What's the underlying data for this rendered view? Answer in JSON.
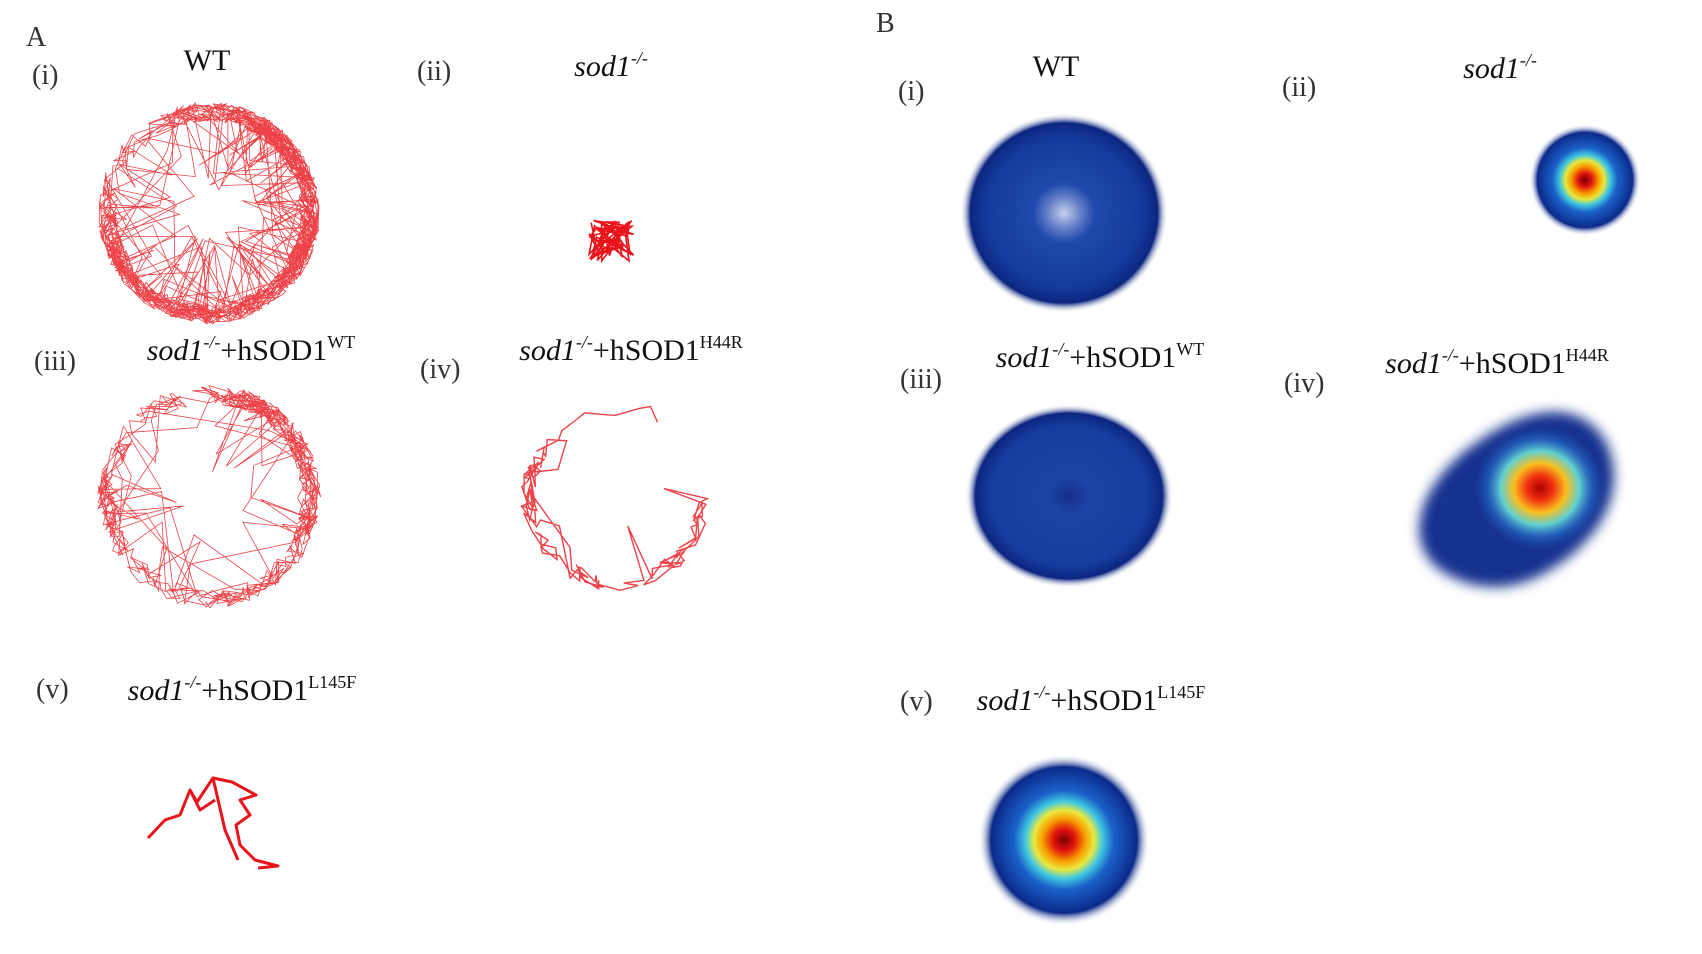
{
  "panel_a": {
    "label": "A",
    "subpanels": [
      {
        "label": "(i)",
        "title": {
          "text": "WT"
        }
      },
      {
        "label": "(ii)",
        "title": {
          "gene": "sod1",
          "genotype": "-/-"
        }
      },
      {
        "label": "(iii)",
        "title": {
          "gene": "sod1",
          "genotype": "-/-",
          "transgene": "+hSOD1",
          "variant": "WT"
        }
      },
      {
        "label": "(iv)",
        "title": {
          "gene": "sod1",
          "genotype": "-/-",
          "transgene": "+hSOD1",
          "variant": "H44R"
        }
      },
      {
        "label": "(v)",
        "title": {
          "gene": "sod1",
          "genotype": "-/-",
          "transgene": "+hSOD1",
          "variant": "L145F"
        }
      }
    ]
  },
  "panel_b": {
    "label": "B",
    "subpanels": [
      {
        "label": "(i)",
        "title": {
          "text": "WT"
        }
      },
      {
        "label": "(ii)",
        "title": {
          "gene": "sod1",
          "genotype": "-/-"
        }
      },
      {
        "label": "(iii)",
        "title": {
          "gene": "sod1",
          "genotype": "-/-",
          "transgene": "+hSOD1",
          "variant": "WT"
        }
      },
      {
        "label": "(iv)",
        "title": {
          "gene": "sod1",
          "genotype": "-/-",
          "transgene": "+hSOD1",
          "variant": "H44R"
        }
      },
      {
        "label": "(v)",
        "title": {
          "gene": "sod1",
          "genotype": "-/-",
          "transgene": "+hSOD1",
          "variant": "L145F"
        }
      }
    ]
  }
}
